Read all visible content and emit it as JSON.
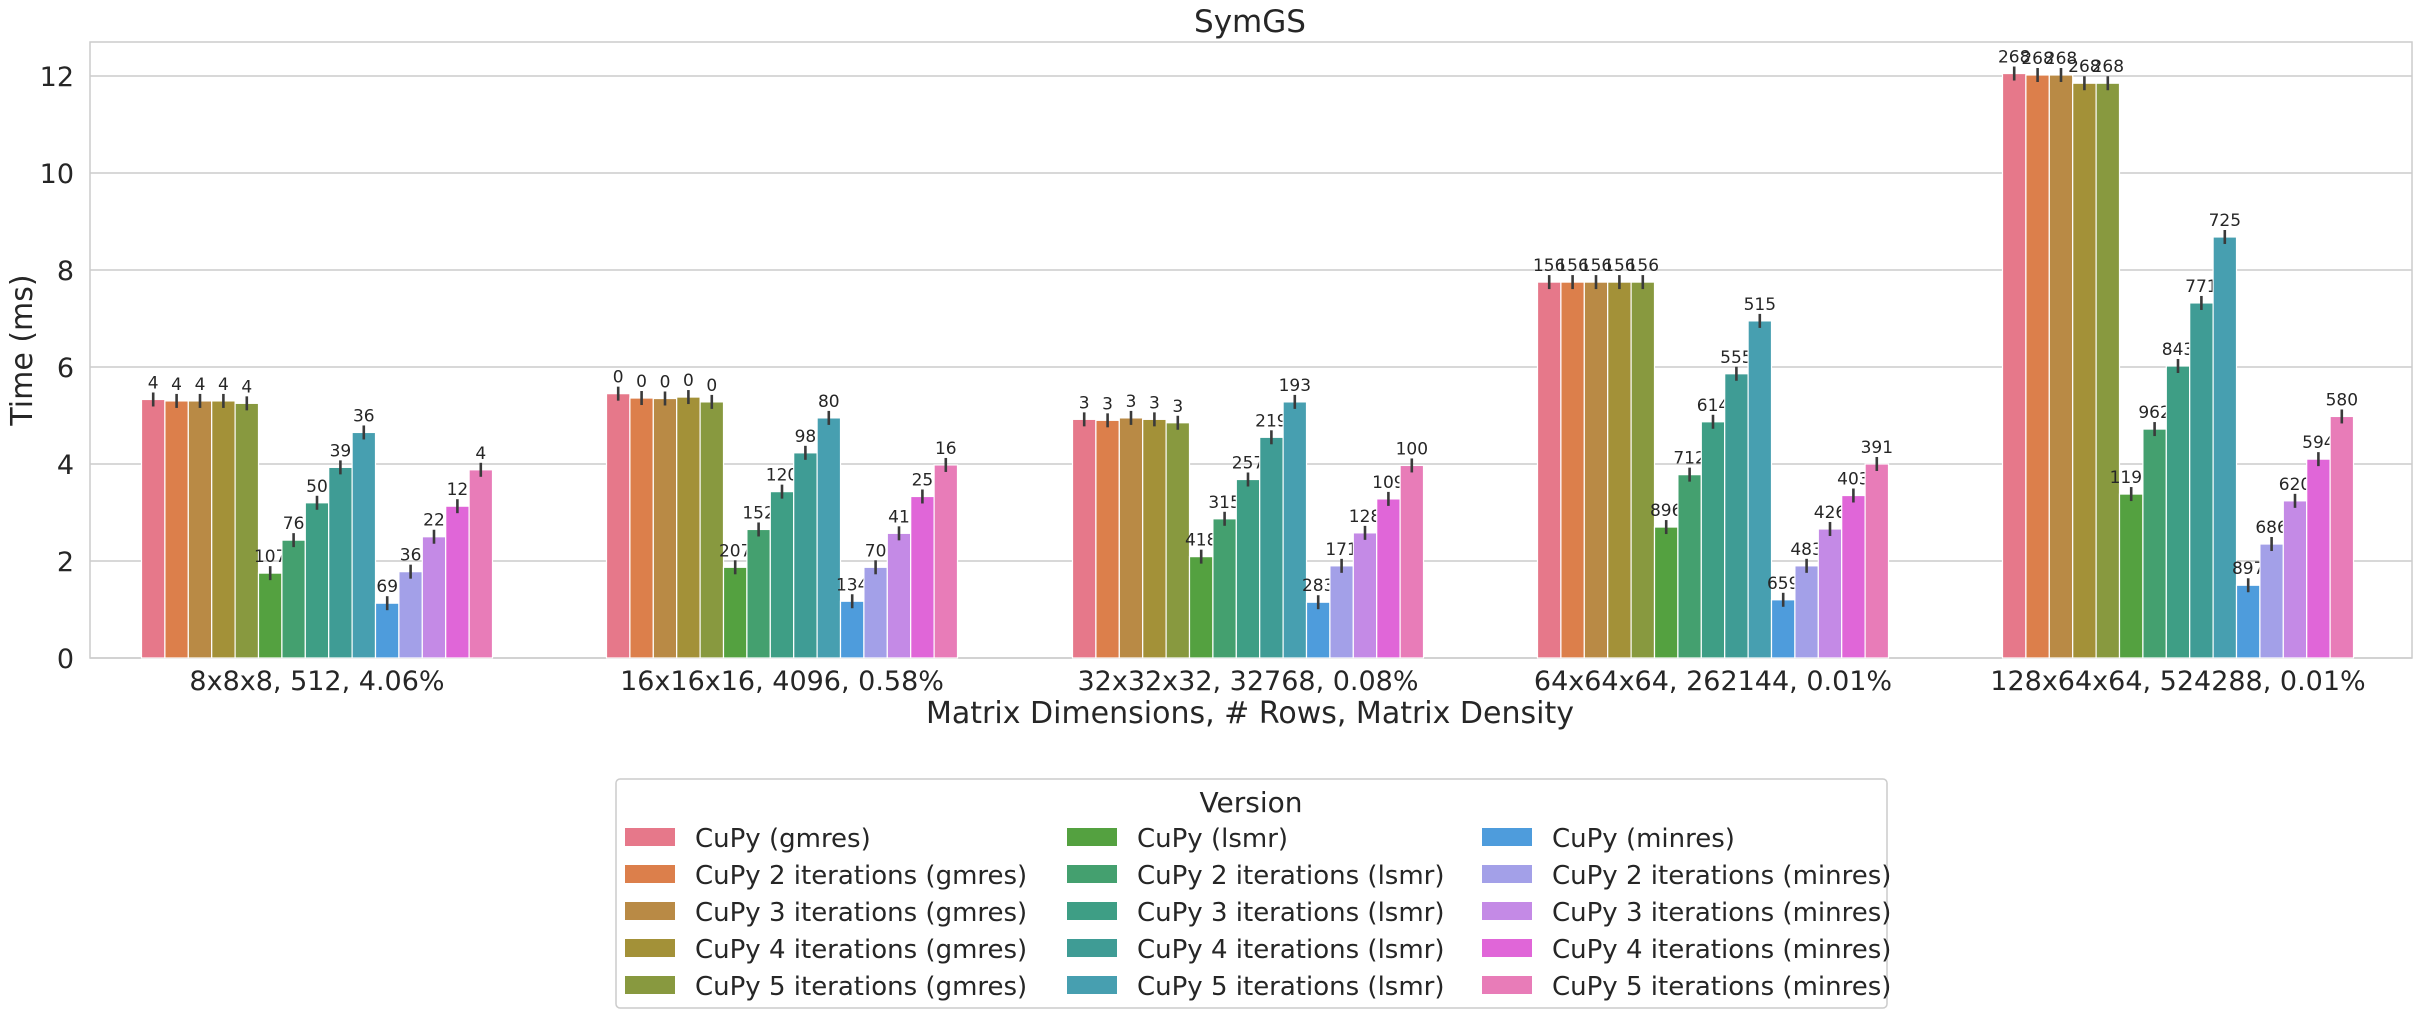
{
  "chart_data": {
    "type": "bar",
    "title": "SymGS",
    "xlabel": "Matrix Dimensions, # Rows, Matrix Density",
    "ylabel": "Time (ms)",
    "ylim": [
      0,
      12.7
    ],
    "yticks": [
      0,
      2,
      4,
      6,
      8,
      10,
      12
    ],
    "grid": true,
    "legend_title": "Version",
    "legend_position": "below",
    "categories": [
      "8x8x8, 512, 4.06%",
      "16x16x16, 4096, 0.58%",
      "32x32x32, 32768, 0.08%",
      "64x64x64, 262144, 0.01%",
      "128x64x64, 524288, 0.01%"
    ],
    "series": [
      {
        "name": "CuPy (gmres)",
        "color": "#e6788a",
        "values": [
          5.33,
          5.45,
          4.92,
          7.75,
          12.05
        ],
        "labels": [
          "4",
          "0",
          "3",
          "156",
          "268"
        ]
      },
      {
        "name": "CuPy 2 iterations (gmres)",
        "color": "#dc7f4b",
        "values": [
          5.3,
          5.36,
          4.9,
          7.75,
          12.02
        ],
        "labels": [
          "4",
          "0",
          "3",
          "156",
          "268"
        ]
      },
      {
        "name": "CuPy 3 iterations (gmres)",
        "color": "#b98a45",
        "values": [
          5.3,
          5.35,
          4.95,
          7.75,
          12.02
        ],
        "labels": [
          "4",
          "0",
          "3",
          "156",
          "268"
        ]
      },
      {
        "name": "CuPy 4 iterations (gmres)",
        "color": "#a39138",
        "values": [
          5.3,
          5.38,
          4.92,
          7.75,
          11.85
        ],
        "labels": [
          "4",
          "0",
          "3",
          "156",
          "268"
        ]
      },
      {
        "name": "CuPy 5 iterations (gmres)",
        "color": "#88993f",
        "values": [
          5.25,
          5.28,
          4.85,
          7.75,
          11.85
        ],
        "labels": [
          "4",
          "0",
          "3",
          "156",
          "268"
        ]
      },
      {
        "name": "CuPy (lsmr)",
        "color": "#54a140",
        "values": [
          1.75,
          1.87,
          2.09,
          2.7,
          3.38
        ],
        "labels": [
          "107",
          "207",
          "418",
          "896",
          "1190"
        ]
      },
      {
        "name": "CuPy 2 iterations (lsmr)",
        "color": "#44a06f",
        "values": [
          2.43,
          2.65,
          2.87,
          3.78,
          4.72
        ],
        "labels": [
          "76",
          "152",
          "315",
          "712",
          "962"
        ]
      },
      {
        "name": "CuPy 3 iterations (lsmr)",
        "color": "#3e9e85",
        "values": [
          3.2,
          3.43,
          3.68,
          4.87,
          6.02
        ],
        "labels": [
          "50",
          "120",
          "257",
          "614",
          "843"
        ]
      },
      {
        "name": "CuPy 4 iterations (lsmr)",
        "color": "#3f9c95",
        "values": [
          3.93,
          4.23,
          4.55,
          5.86,
          7.32
        ],
        "labels": [
          "39",
          "98",
          "219",
          "555",
          "771"
        ]
      },
      {
        "name": "CuPy 5 iterations (lsmr)",
        "color": "#479fb0",
        "values": [
          4.65,
          4.95,
          5.28,
          6.95,
          8.68
        ],
        "labels": [
          "36",
          "80",
          "193",
          "515",
          "725"
        ]
      },
      {
        "name": "CuPy (minres)",
        "color": "#4e9cdc",
        "values": [
          1.13,
          1.17,
          1.15,
          1.2,
          1.5
        ],
        "labels": [
          "69",
          "134",
          "283",
          "659",
          "897"
        ]
      },
      {
        "name": "CuPy 2 iterations (minres)",
        "color": "#a3a0e8",
        "values": [
          1.78,
          1.87,
          1.9,
          1.9,
          2.35
        ],
        "labels": [
          "36",
          "70",
          "171",
          "483",
          "686"
        ]
      },
      {
        "name": "CuPy 3 iterations (minres)",
        "color": "#c48ae6",
        "values": [
          2.5,
          2.57,
          2.58,
          2.66,
          3.24
        ],
        "labels": [
          "22",
          "41",
          "128",
          "426",
          "620"
        ]
      },
      {
        "name": "CuPy 4 iterations (minres)",
        "color": "#e066d8",
        "values": [
          3.13,
          3.33,
          3.28,
          3.35,
          4.1
        ],
        "labels": [
          "12",
          "25",
          "109",
          "403",
          "594"
        ]
      },
      {
        "name": "CuPy 5 iterations (minres)",
        "color": "#e87cb8",
        "values": [
          3.88,
          3.98,
          3.97,
          4.0,
          4.98
        ],
        "labels": [
          "4",
          "16",
          "100",
          "391",
          "580"
        ]
      }
    ]
  }
}
